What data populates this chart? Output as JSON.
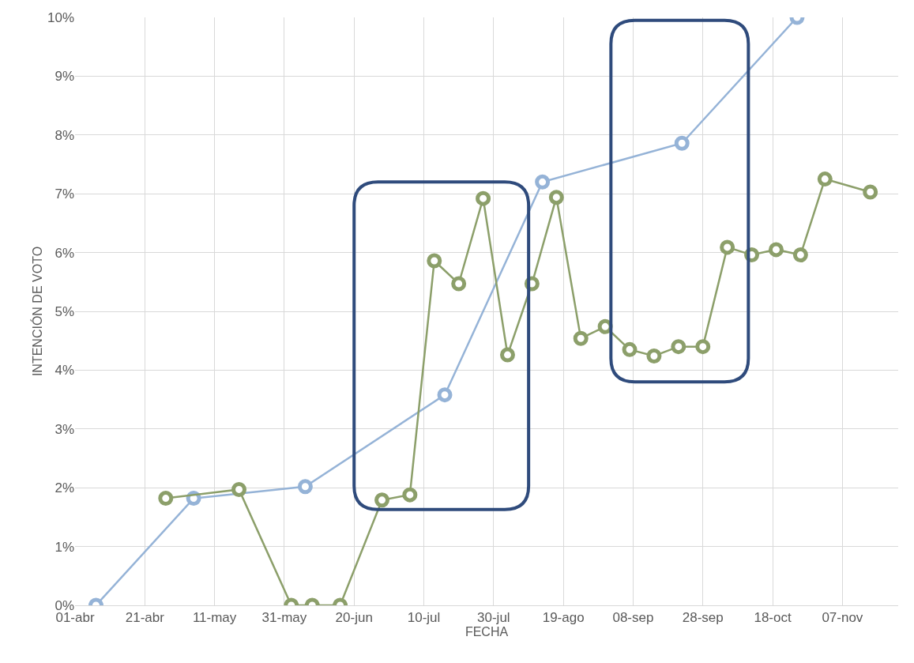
{
  "chart_data": {
    "type": "line",
    "xlabel": "FECHA",
    "ylabel": "INTENCIÓN DE VOTO",
    "xlim": [
      "--04-01",
      "--11-23"
    ],
    "xticks": [
      {
        "value": "--04-01",
        "label": "01-abr"
      },
      {
        "value": "--04-21",
        "label": "21-abr"
      },
      {
        "value": "--05-11",
        "label": "11-may"
      },
      {
        "value": "--05-31",
        "label": "31-may"
      },
      {
        "value": "--06-20",
        "label": "20-jun"
      },
      {
        "value": "--07-10",
        "label": "10-jul"
      },
      {
        "value": "--07-30",
        "label": "30-jul"
      },
      {
        "value": "--08-19",
        "label": "19-ago"
      },
      {
        "value": "--09-08",
        "label": "08-sep"
      },
      {
        "value": "--09-28",
        "label": "28-sep"
      },
      {
        "value": "--10-18",
        "label": "18-oct"
      },
      {
        "value": "--11-07",
        "label": "07-nov"
      }
    ],
    "ylim": [
      0,
      10
    ],
    "yticks": [
      {
        "value": 0,
        "label": "0%"
      },
      {
        "value": 1,
        "label": "1%"
      },
      {
        "value": 2,
        "label": "2%"
      },
      {
        "value": 3,
        "label": "3%"
      },
      {
        "value": 4,
        "label": "4%"
      },
      {
        "value": 5,
        "label": "5%"
      },
      {
        "value": 6,
        "label": "6%"
      },
      {
        "value": 7,
        "label": "7%"
      },
      {
        "value": 8,
        "label": "8%"
      },
      {
        "value": 9,
        "label": "9%"
      },
      {
        "value": 10,
        "label": "10%"
      }
    ],
    "grid": true,
    "marker": "circle",
    "line_style": "solid",
    "series": [
      {
        "color": "#95b3d7",
        "x": [
          "--04-07",
          "--05-05",
          "--06-06",
          "--07-16",
          "--08-13",
          "--09-22",
          "--10-25"
        ],
        "values": [
          0,
          1.82,
          2.02,
          3.58,
          7.2,
          7.86,
          10
        ]
      },
      {
        "color": "#8c9f6a",
        "x": [
          "--04-27",
          "--05-18",
          "--06-02",
          "--06-08",
          "--06-16",
          "--06-28",
          "--07-06",
          "--07-13",
          "--07-20",
          "--07-27",
          "--08-03",
          "--08-10",
          "--08-17",
          "--08-24",
          "--08-31",
          "--09-07",
          "--09-14",
          "--09-21",
          "--09-28",
          "--10-05",
          "--10-12",
          "--10-19",
          "--10-26",
          "--11-02",
          "--11-15"
        ],
        "values": [
          1.82,
          1.97,
          0,
          0,
          0,
          1.79,
          1.88,
          5.86,
          5.47,
          6.92,
          4.26,
          5.47,
          6.94,
          4.54,
          4.74,
          4.35,
          4.24,
          4.4,
          4.4,
          6.09,
          5.96,
          6.05,
          5.96,
          7.25,
          7.03
        ]
      }
    ]
  }
}
